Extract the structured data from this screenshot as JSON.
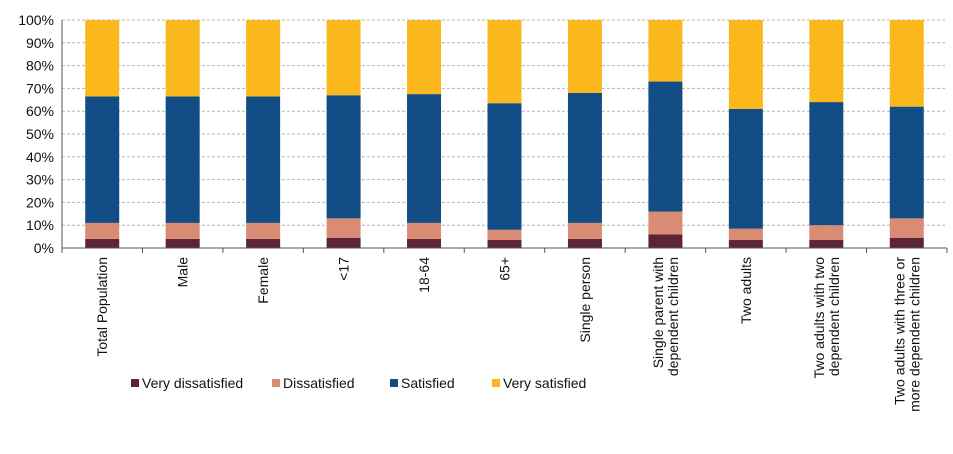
{
  "chart_data": {
    "type": "bar",
    "stacked": true,
    "title": "",
    "xlabel": "",
    "ylabel": "",
    "ylim": [
      0,
      100
    ],
    "ytick_step": 10,
    "ytick_suffix": "%",
    "grid": "horizontal dashed",
    "legend_position": "bottom-center",
    "categories": [
      [
        "Total Population"
      ],
      [
        "Male"
      ],
      [
        "Female"
      ],
      [
        "<17"
      ],
      [
        "18-64"
      ],
      [
        "65+"
      ],
      [
        "Single person"
      ],
      [
        "Single parent with",
        "dependent children"
      ],
      [
        "Two adults"
      ],
      [
        "Two adults with two",
        "dependent children"
      ],
      [
        "Two adults with three or",
        "more dependent children"
      ]
    ],
    "series": [
      {
        "name": "Very dissatisfied",
        "color": "#5b2535",
        "values": [
          4,
          4,
          4,
          4.5,
          4,
          3.5,
          4,
          6,
          3.5,
          3.5,
          4.5
        ]
      },
      {
        "name": "Dissatisfied",
        "color": "#d98b74",
        "values": [
          7,
          7,
          7,
          8.5,
          7,
          4.5,
          7,
          10,
          5,
          6.5,
          8.5
        ]
      },
      {
        "name": "Satisfied",
        "color": "#124e85",
        "values": [
          55.5,
          55.5,
          55.5,
          54,
          56.5,
          55.5,
          57,
          57,
          52.5,
          54,
          49
        ]
      },
      {
        "name": "Very  satisfied",
        "color": "#fbb81d",
        "values": [
          33.5,
          33.5,
          33.5,
          33,
          32.5,
          36.5,
          32,
          27,
          39,
          36,
          38
        ]
      }
    ]
  }
}
